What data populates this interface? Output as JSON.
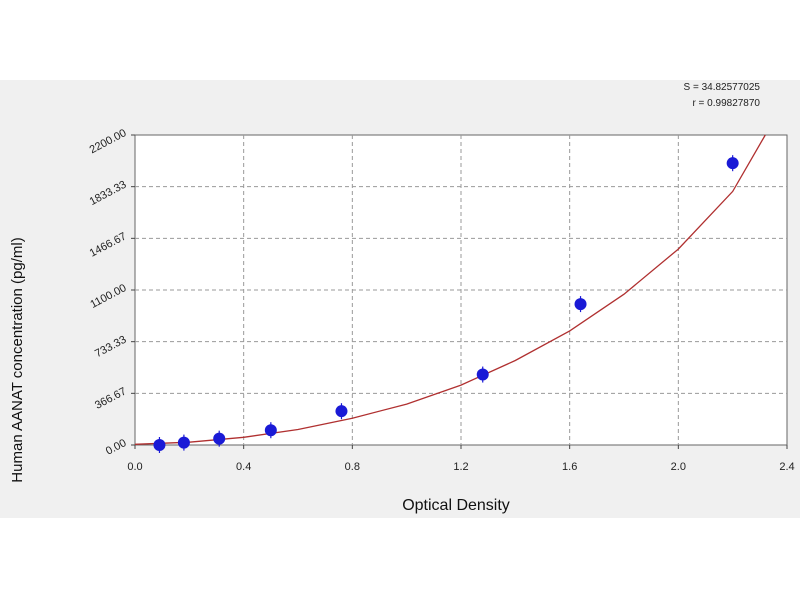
{
  "stats": {
    "s": "S = 34.82577025",
    "r": "r = 0.99827870"
  },
  "chart_data": {
    "type": "scatter",
    "xlabel": "Optical Density",
    "ylabel": "Human AANAT concentration (pg/ml)",
    "xlim": [
      0.0,
      2.4
    ],
    "ylim": [
      0.0,
      2200.0
    ],
    "x_ticks": [
      "0.0",
      "0.4",
      "0.8",
      "1.2",
      "1.6",
      "2.0",
      "2.4"
    ],
    "x_tick_values": [
      0.0,
      0.4,
      0.8,
      1.2,
      1.6,
      2.0,
      2.4
    ],
    "y_ticks": [
      "0.00",
      "366.67",
      "733.33",
      "1100.00",
      "1466.67",
      "1833.33",
      "2200.00"
    ],
    "y_tick_values": [
      0.0,
      366.67,
      733.33,
      1100.0,
      1466.67,
      1833.33,
      2200.0
    ],
    "grid": true,
    "point_color": "#1a1ad6",
    "curve_color": "#b03030",
    "series": [
      {
        "points": [
          {
            "x": 0.09,
            "y": 0
          },
          {
            "x": 0.18,
            "y": 17
          },
          {
            "x": 0.31,
            "y": 45
          },
          {
            "x": 0.5,
            "y": 105
          },
          {
            "x": 0.76,
            "y": 240
          },
          {
            "x": 1.28,
            "y": 500
          },
          {
            "x": 1.64,
            "y": 1000
          },
          {
            "x": 2.2,
            "y": 2000
          }
        ]
      }
    ],
    "fit_curve": {
      "x": [
        0.0,
        0.2,
        0.4,
        0.6,
        0.8,
        1.0,
        1.2,
        1.4,
        1.6,
        1.8,
        2.0,
        2.2,
        2.32
      ],
      "y": [
        5,
        20,
        55,
        110,
        190,
        290,
        425,
        600,
        810,
        1070,
        1390,
        1800,
        2200
      ]
    }
  }
}
